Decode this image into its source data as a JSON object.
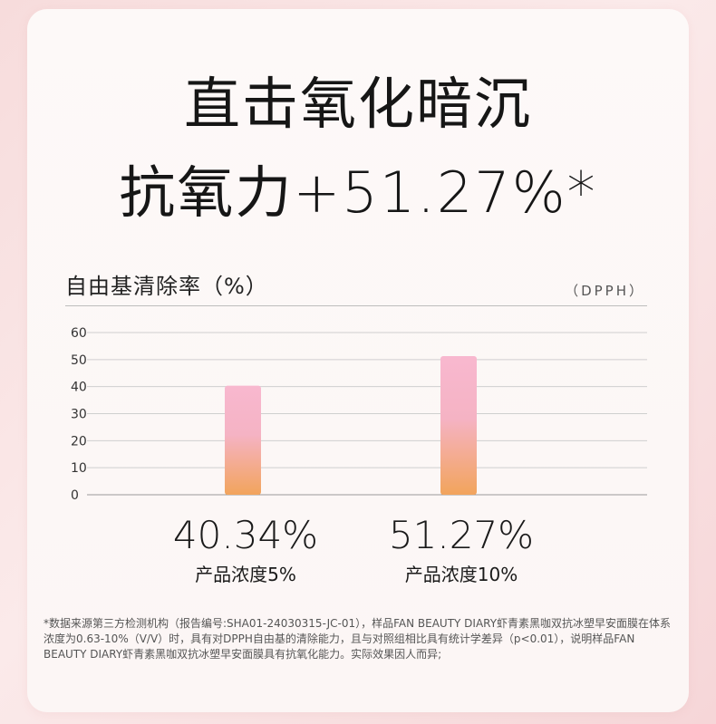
{
  "headline": {
    "line1": "直击氧化暗沉",
    "line2": "抗氧力+51.27%*"
  },
  "colors": {
    "bar_top": "#f8b8cf",
    "bar_bottom": "#f2a45c",
    "grid": "#cfcfcf",
    "text": "#1a1a1a"
  },
  "chart_data": {
    "type": "bar",
    "title": "自由基清除率（%）",
    "method_label": "（DPPH）",
    "ylim": [
      0,
      60
    ],
    "yticks": [
      "0",
      "10",
      "20",
      "30",
      "40",
      "50",
      "60"
    ],
    "grid": true,
    "categories": [
      "产品浓度5%",
      "产品浓度10%"
    ],
    "values": [
      40.34,
      51.27
    ],
    "value_labels": [
      "40.34%",
      "51.27%"
    ]
  },
  "footnote": "*数据来源第三方检测机构（报告编号:SHA01-24030315-JC-01），样品FAN BEAUTY DIARY虾青素黑咖双抗冰塑早安面膜在体系浓度为0.63-10%（V/V）时，具有对DPPH自由基的清除能力，且与对照组相比具有统计学差异（p<0.01），说明样品FAN BEAUTY DIARY虾青素黑咖双抗冰塑早安面膜具有抗氧化能力。实际效果因人而异;"
}
